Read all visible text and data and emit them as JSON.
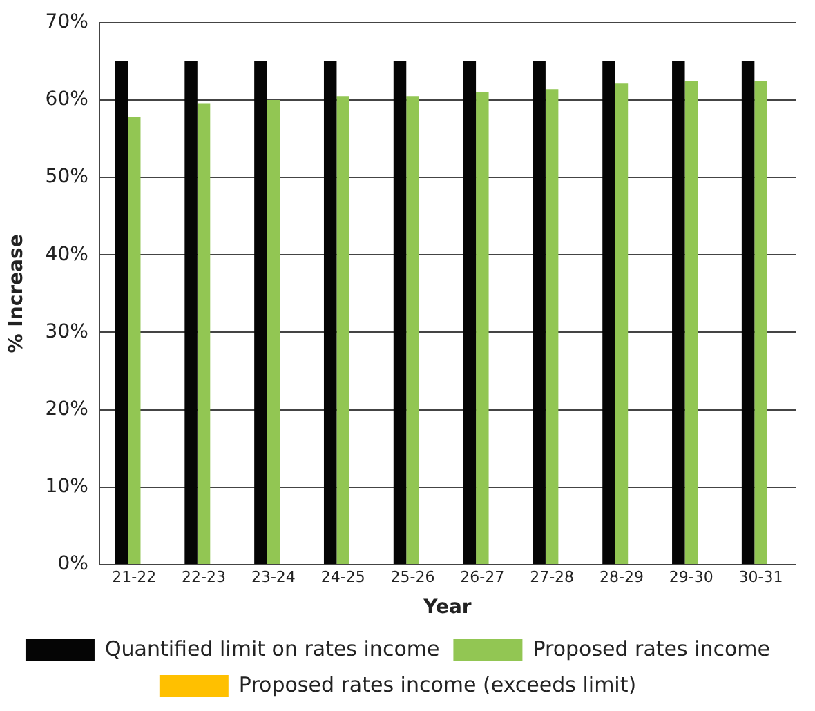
{
  "chart_data": {
    "type": "bar",
    "xlabel": "Year",
    "ylabel": "% Increase",
    "categories": [
      "21-22",
      "22-23",
      "23-24",
      "24-25",
      "25-26",
      "26-27",
      "27-28",
      "28-29",
      "29-30",
      "30-31"
    ],
    "series": [
      {
        "name": "Quantified limit on rates income",
        "color": "#050505",
        "values": [
          65,
          65,
          65,
          65,
          65,
          65,
          65,
          65,
          65,
          65
        ]
      },
      {
        "name": "Proposed rates income",
        "color": "#92c653",
        "values": [
          57.8,
          59.6,
          60,
          60.5,
          60.5,
          61,
          61.4,
          62.2,
          62.5,
          62.4
        ]
      },
      {
        "name": "Proposed rates income (exceeds limit)",
        "color": "#ffc000",
        "values": [
          null,
          null,
          null,
          null,
          null,
          null,
          null,
          null,
          null,
          null
        ]
      }
    ],
    "ylim": [
      0,
      70
    ],
    "yticks": [
      {
        "value": 0,
        "label": "0%"
      },
      {
        "value": 10,
        "label": "10%"
      },
      {
        "value": 20,
        "label": "20%"
      },
      {
        "value": 30,
        "label": "30%"
      },
      {
        "value": 40,
        "label": "40%"
      },
      {
        "value": 50,
        "label": "50%"
      },
      {
        "value": 60,
        "label": "60%"
      },
      {
        "value": 70,
        "label": "70%"
      }
    ],
    "grid": "y",
    "legend": "bottom"
  }
}
